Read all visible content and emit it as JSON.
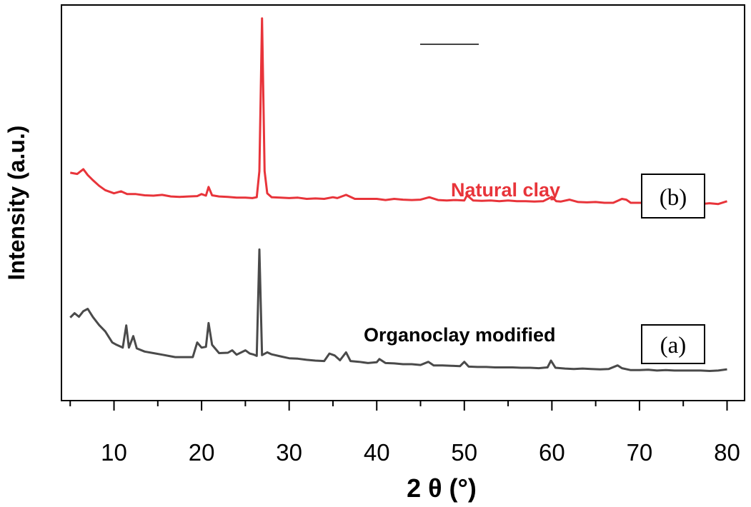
{
  "chart_data": {
    "type": "line",
    "title": "",
    "xlabel": "2 θ (°)",
    "ylabel": "Intensity (a.u.)",
    "xlim": [
      4,
      82
    ],
    "ylim": [
      0,
      100
    ],
    "xticks": [
      10,
      20,
      30,
      40,
      50,
      60,
      70,
      80
    ],
    "grid": false,
    "legend_marker": "top-center",
    "series": [
      {
        "name": "Natural clay",
        "tag": "(b)",
        "color": "#e8343a",
        "points": [
          [
            5,
            57.6
          ],
          [
            5.8,
            57.3
          ],
          [
            6.5,
            58.5
          ],
          [
            7,
            57.0
          ],
          [
            7.6,
            55.7
          ],
          [
            8.3,
            54.3
          ],
          [
            9,
            53.2
          ],
          [
            10,
            52.4
          ],
          [
            10.8,
            52.9
          ],
          [
            11.5,
            52.2
          ],
          [
            12.5,
            52.2
          ],
          [
            13.5,
            51.9
          ],
          [
            14.5,
            51.8
          ],
          [
            15.5,
            52.0
          ],
          [
            16.5,
            51.6
          ],
          [
            17.5,
            51.5
          ],
          [
            18.5,
            51.6
          ],
          [
            19.5,
            51.7
          ],
          [
            20,
            52.2
          ],
          [
            20.5,
            51.8
          ],
          [
            20.8,
            54.0
          ],
          [
            21.2,
            51.9
          ],
          [
            22,
            51.6
          ],
          [
            23,
            51.5
          ],
          [
            24,
            51.3
          ],
          [
            25,
            51.3
          ],
          [
            25.8,
            51.2
          ],
          [
            26.3,
            51.4
          ],
          [
            26.6,
            58.0
          ],
          [
            26.9,
            96.6
          ],
          [
            27.2,
            58.0
          ],
          [
            27.5,
            52.4
          ],
          [
            28,
            51.4
          ],
          [
            29,
            51.3
          ],
          [
            30,
            51.2
          ],
          [
            31,
            51.3
          ],
          [
            32,
            51.0
          ],
          [
            33,
            51.1
          ],
          [
            34,
            51.0
          ],
          [
            35,
            51.4
          ],
          [
            35.5,
            51.2
          ],
          [
            36.5,
            52.0
          ],
          [
            37.5,
            51.0
          ],
          [
            38.5,
            51.0
          ],
          [
            40,
            51.0
          ],
          [
            41,
            50.7
          ],
          [
            42,
            51.0
          ],
          [
            43,
            50.8
          ],
          [
            44,
            50.7
          ],
          [
            45,
            50.8
          ],
          [
            46,
            51.4
          ],
          [
            47,
            50.7
          ],
          [
            48,
            50.6
          ],
          [
            49,
            50.7
          ],
          [
            50,
            50.6
          ],
          [
            50.3,
            51.9
          ],
          [
            51,
            50.6
          ],
          [
            52,
            50.5
          ],
          [
            53,
            50.6
          ],
          [
            54,
            50.4
          ],
          [
            55,
            50.6
          ],
          [
            56,
            50.4
          ],
          [
            57,
            50.4
          ],
          [
            58,
            50.3
          ],
          [
            59,
            50.4
          ],
          [
            60,
            51.5
          ],
          [
            60.5,
            50.4
          ],
          [
            61,
            50.3
          ],
          [
            62,
            50.8
          ],
          [
            63,
            50.2
          ],
          [
            64,
            50.1
          ],
          [
            65,
            50.2
          ],
          [
            66,
            50.0
          ],
          [
            67,
            50.0
          ],
          [
            68,
            51.0
          ],
          [
            68.5,
            50.8
          ],
          [
            69,
            50.0
          ],
          [
            70,
            50.0
          ],
          [
            71,
            50.0
          ],
          [
            72,
            49.9
          ],
          [
            73,
            49.9
          ],
          [
            74,
            50.3
          ],
          [
            75,
            49.9
          ],
          [
            76,
            50.3
          ],
          [
            77,
            49.7
          ],
          [
            78,
            49.9
          ],
          [
            79,
            49.7
          ],
          [
            80,
            50.4
          ]
        ]
      },
      {
        "name": "Organoclay modified",
        "tag": "(a)",
        "color": "#4a4a4a",
        "points": [
          [
            5,
            21.0
          ],
          [
            5.5,
            22.1
          ],
          [
            6,
            21.2
          ],
          [
            6.5,
            22.6
          ],
          [
            7,
            23.2
          ],
          [
            7.6,
            21.1
          ],
          [
            8.3,
            19.1
          ],
          [
            9,
            17.5
          ],
          [
            9.8,
            14.7
          ],
          [
            10.3,
            14.1
          ],
          [
            11,
            13.4
          ],
          [
            11.4,
            19.0
          ],
          [
            11.7,
            13.4
          ],
          [
            12.2,
            16.3
          ],
          [
            12.6,
            13.2
          ],
          [
            13.5,
            12.4
          ],
          [
            14.5,
            12.0
          ],
          [
            15.5,
            11.6
          ],
          [
            16.5,
            11.2
          ],
          [
            17,
            11.0
          ],
          [
            18,
            11.0
          ],
          [
            19,
            11.0
          ],
          [
            19.5,
            14.7
          ],
          [
            20,
            13.4
          ],
          [
            20.5,
            13.6
          ],
          [
            20.8,
            19.6
          ],
          [
            21.2,
            14.1
          ],
          [
            22,
            12.0
          ],
          [
            23,
            12.1
          ],
          [
            23.5,
            12.7
          ],
          [
            24,
            11.6
          ],
          [
            25,
            12.7
          ],
          [
            25.5,
            11.9
          ],
          [
            26,
            11.6
          ],
          [
            26.3,
            11.3
          ],
          [
            26.6,
            38.2
          ],
          [
            26.9,
            11.5
          ],
          [
            27.5,
            12.2
          ],
          [
            28,
            11.7
          ],
          [
            29,
            11.2
          ],
          [
            30,
            10.7
          ],
          [
            31,
            10.6
          ],
          [
            32,
            10.3
          ],
          [
            33,
            10.1
          ],
          [
            34,
            10.0
          ],
          [
            34.6,
            11.9
          ],
          [
            35.2,
            11.4
          ],
          [
            35.8,
            10.2
          ],
          [
            36.5,
            12.2
          ],
          [
            37,
            10.0
          ],
          [
            38,
            9.8
          ],
          [
            39,
            9.5
          ],
          [
            40,
            9.7
          ],
          [
            40.3,
            10.5
          ],
          [
            41,
            9.5
          ],
          [
            42,
            9.4
          ],
          [
            43,
            9.2
          ],
          [
            44,
            9.2
          ],
          [
            45,
            9.0
          ],
          [
            45.9,
            9.8
          ],
          [
            46.5,
            8.9
          ],
          [
            47.5,
            8.9
          ],
          [
            48.5,
            8.8
          ],
          [
            49.5,
            8.7
          ],
          [
            50,
            9.8
          ],
          [
            50.5,
            8.6
          ],
          [
            51.5,
            8.5
          ],
          [
            52.5,
            8.5
          ],
          [
            53.5,
            8.4
          ],
          [
            54.5,
            8.4
          ],
          [
            55.5,
            8.4
          ],
          [
            56.5,
            8.3
          ],
          [
            57.5,
            8.3
          ],
          [
            58.5,
            8.2
          ],
          [
            59.5,
            8.4
          ],
          [
            59.9,
            10.1
          ],
          [
            60.4,
            8.3
          ],
          [
            61.5,
            8.1
          ],
          [
            62.5,
            8.0
          ],
          [
            63.5,
            8.1
          ],
          [
            64.5,
            8.0
          ],
          [
            65.5,
            7.9
          ],
          [
            66.5,
            8.0
          ],
          [
            67.5,
            8.9
          ],
          [
            68,
            8.2
          ],
          [
            69,
            7.7
          ],
          [
            70,
            7.7
          ],
          [
            71,
            7.8
          ],
          [
            72,
            7.6
          ],
          [
            73,
            7.7
          ],
          [
            74,
            7.6
          ],
          [
            75,
            7.6
          ],
          [
            76,
            7.6
          ],
          [
            77,
            7.6
          ],
          [
            78,
            7.5
          ],
          [
            79,
            7.6
          ],
          [
            80,
            7.9
          ]
        ]
      }
    ]
  }
}
